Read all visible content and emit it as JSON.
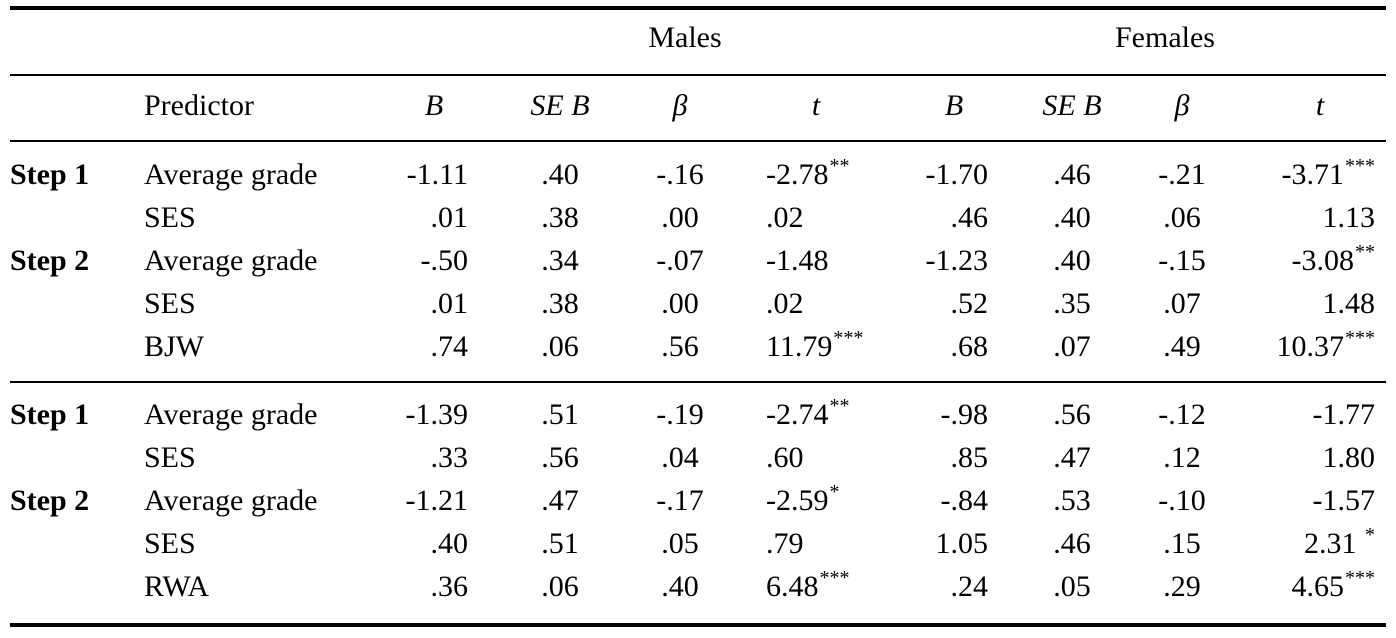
{
  "groups": {
    "males": "Males",
    "females": "Females"
  },
  "header": {
    "predictor": "Predictor",
    "cols": [
      "B",
      "SE B",
      "β",
      "t",
      "B",
      "SE B",
      "β",
      "t"
    ]
  },
  "panels": [
    {
      "rows": [
        {
          "step": "Step 1",
          "predictor": "Average grade",
          "values": [
            "-1.11",
            ".40",
            "-.16",
            "-2.78",
            "-1.70",
            ".46",
            "-.21",
            "-3.71"
          ],
          "stars": [
            "",
            "",
            "",
            "**",
            "",
            "",
            "",
            "***"
          ]
        },
        {
          "step": "",
          "predictor": "SES",
          "values": [
            ".01",
            ".38",
            ".00",
            ".02",
            ".46",
            ".40",
            ".06",
            "1.13"
          ],
          "stars": [
            "",
            "",
            "",
            "",
            "",
            "",
            "",
            ""
          ]
        },
        {
          "step": "Step 2",
          "predictor": "Average grade",
          "values": [
            "-.50",
            ".34",
            "-.07",
            "-1.48",
            "-1.23",
            ".40",
            "-.15",
            "-3.08"
          ],
          "stars": [
            "",
            "",
            "",
            "",
            "",
            "",
            "",
            "**"
          ]
        },
        {
          "step": "",
          "predictor": "SES",
          "values": [
            ".01",
            ".38",
            ".00",
            ".02",
            ".52",
            ".35",
            ".07",
            "1.48"
          ],
          "stars": [
            "",
            "",
            "",
            "",
            "",
            "",
            "",
            ""
          ]
        },
        {
          "step": "",
          "predictor": "BJW",
          "values": [
            ".74",
            ".06",
            ".56",
            "11.79",
            ".68",
            ".07",
            ".49",
            "10.37"
          ],
          "stars": [
            "",
            "",
            "",
            "***",
            "",
            "",
            "",
            "***"
          ]
        }
      ]
    },
    {
      "rows": [
        {
          "step": "Step 1",
          "predictor": "Average grade",
          "values": [
            "-1.39",
            ".51",
            "-.19",
            "-2.74",
            "-.98",
            ".56",
            "-.12",
            "-1.77"
          ],
          "stars": [
            "",
            "",
            "",
            "**",
            "",
            "",
            "",
            ""
          ]
        },
        {
          "step": "",
          "predictor": "SES",
          "values": [
            ".33",
            ".56",
            ".04",
            ".60",
            ".85",
            ".47",
            ".12",
            "1.80"
          ],
          "stars": [
            "",
            "",
            "",
            "",
            "",
            "",
            "",
            ""
          ]
        },
        {
          "step": "Step 2",
          "predictor": "Average grade",
          "values": [
            "-1.21",
            ".47",
            "-.17",
            "-2.59",
            "-.84",
            ".53",
            "-.10",
            "-1.57"
          ],
          "stars": [
            "",
            "",
            "",
            "*",
            "",
            "",
            "",
            ""
          ]
        },
        {
          "step": "",
          "predictor": "SES",
          "values": [
            ".40",
            ".51",
            ".05",
            ".79",
            "1.05",
            ".46",
            ".15",
            "2.31 "
          ],
          "stars": [
            "",
            "",
            "",
            "",
            "",
            "",
            "",
            "*"
          ]
        },
        {
          "step": "",
          "predictor": "RWA",
          "values": [
            ".36",
            ".06",
            ".40",
            "6.48",
            ".24",
            ".05",
            ".29",
            "4.65"
          ],
          "stars": [
            "",
            "",
            "",
            "***",
            "",
            "",
            "",
            "***"
          ]
        }
      ]
    }
  ]
}
